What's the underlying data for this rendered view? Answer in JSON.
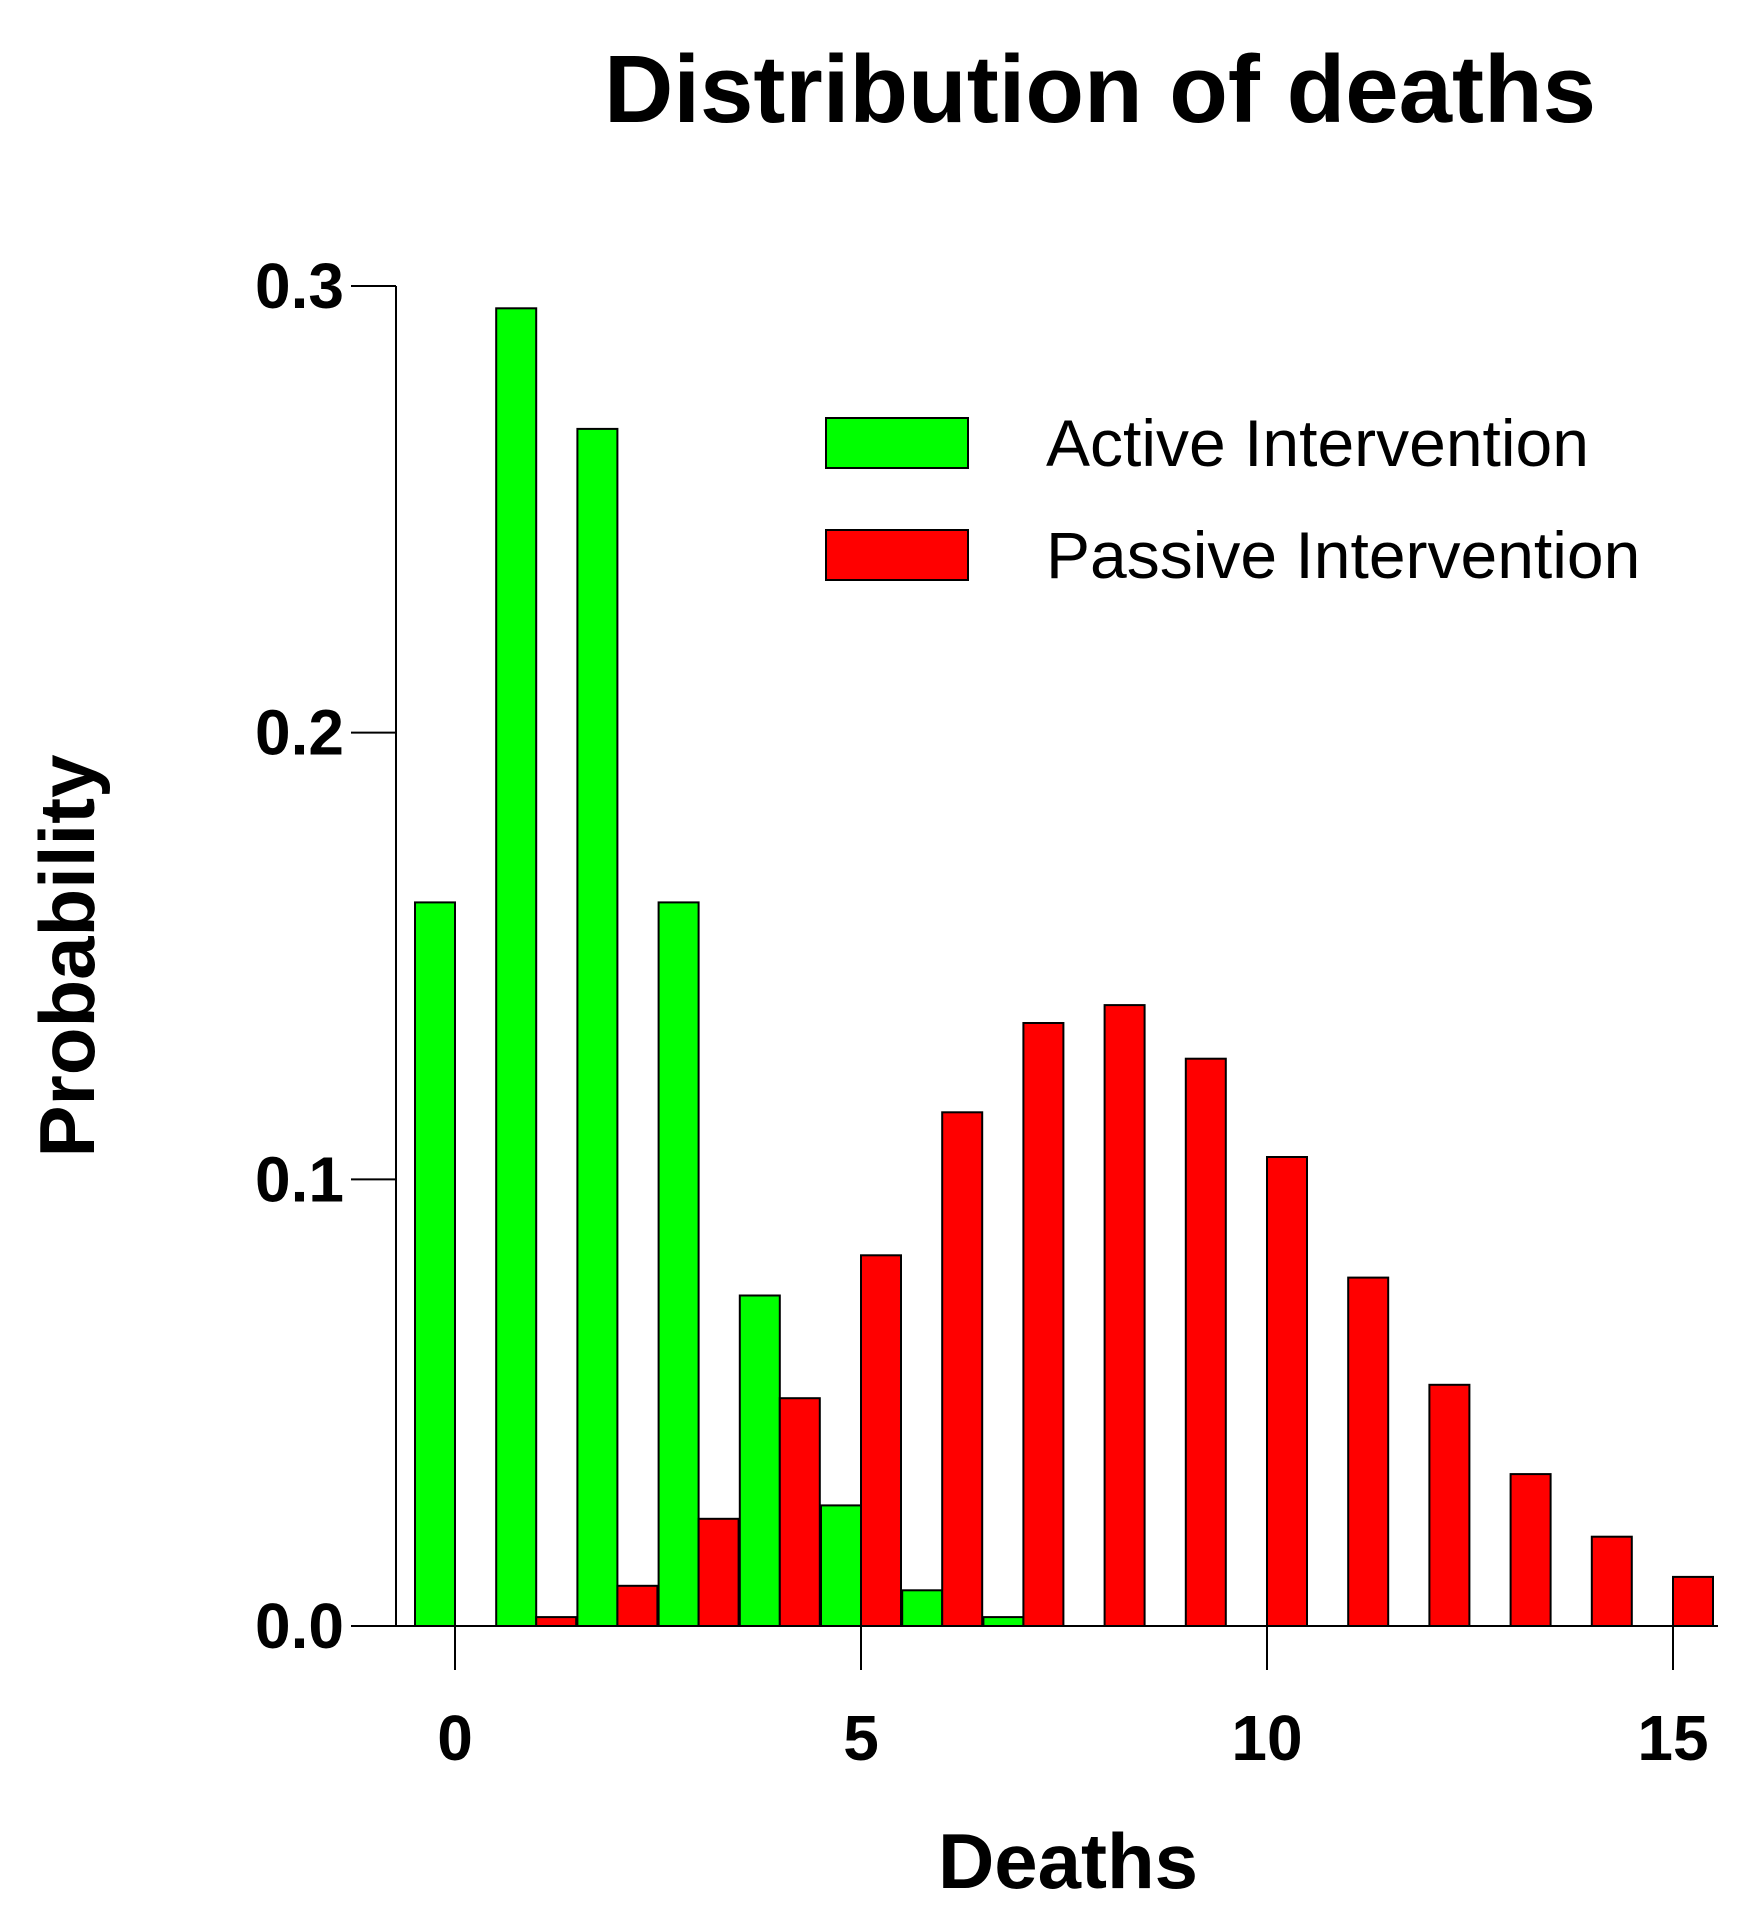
{
  "chart_data": {
    "type": "bar",
    "title": "Distribution of deaths",
    "xlabel": "Deaths",
    "ylabel": "Probability",
    "xlim": [
      -0.7,
      15.7
    ],
    "ylim": [
      0,
      0.3
    ],
    "xticks": [
      0,
      5,
      10,
      15
    ],
    "xtick_labels": [
      "0",
      "5",
      "10",
      "15"
    ],
    "yticks": [
      0,
      0.1,
      0.2,
      0.3
    ],
    "ytick_labels": [
      "0.0",
      "0.1",
      "0.2",
      "0.3"
    ],
    "categories": [
      0,
      1,
      2,
      3,
      4,
      5,
      6,
      7,
      8,
      9,
      10,
      11,
      12,
      13,
      14,
      15
    ],
    "legend_position": "top-right",
    "series": [
      {
        "name": "Active Intervention",
        "color": "#00ff00",
        "values": [
          0.162,
          0.295,
          0.268,
          0.162,
          0.074,
          0.027,
          0.008,
          0.002,
          0,
          0,
          0,
          0,
          0,
          0,
          0,
          0
        ]
      },
      {
        "name": "Passive Intervention",
        "color": "#ff0000",
        "values": [
          0,
          0.002,
          0.009,
          0.024,
          0.051,
          0.083,
          0.115,
          0.135,
          0.139,
          0.127,
          0.105,
          0.078,
          0.054,
          0.034,
          0.02,
          0.011
        ]
      }
    ]
  }
}
